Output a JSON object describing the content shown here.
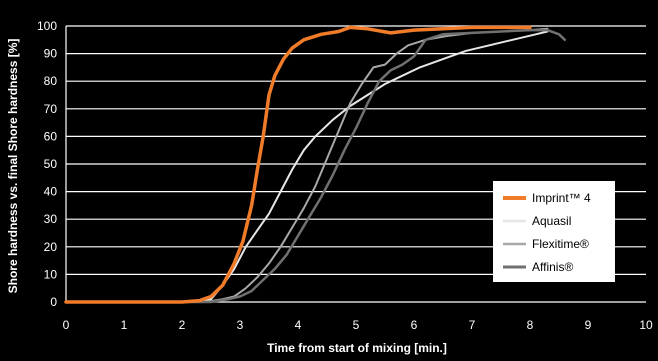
{
  "chart_data": {
    "type": "line",
    "xlabel": "Time from start of mixing [min.]",
    "ylabel": "Shore hardness vs. final Shore hardness [%]",
    "xlim": [
      0,
      10
    ],
    "ylim": [
      0,
      100
    ],
    "xticks": [
      "0",
      "1",
      "2",
      "3",
      "4",
      "5",
      "6",
      "7",
      "8",
      "9",
      "10"
    ],
    "yticks": [
      "0",
      "10",
      "20",
      "30",
      "40",
      "50",
      "60",
      "70",
      "80",
      "90",
      "100"
    ],
    "grid": "horizontal",
    "legend_position": "bottom-right",
    "series": [
      {
        "name": "Imprint™ 4",
        "color": "#f07c2a",
        "width": 3.5,
        "points": [
          [
            0,
            0
          ],
          [
            2.0,
            0
          ],
          [
            2.3,
            0.5
          ],
          [
            2.5,
            2
          ],
          [
            2.7,
            6
          ],
          [
            2.9,
            14
          ],
          [
            3.05,
            22
          ],
          [
            3.2,
            35
          ],
          [
            3.3,
            48
          ],
          [
            3.4,
            60
          ],
          [
            3.5,
            75
          ],
          [
            3.6,
            82
          ],
          [
            3.75,
            88
          ],
          [
            3.9,
            92
          ],
          [
            4.1,
            95
          ],
          [
            4.4,
            97
          ],
          [
            4.7,
            98
          ],
          [
            4.9,
            99.5
          ],
          [
            5.2,
            99
          ],
          [
            5.6,
            97.5
          ],
          [
            6.0,
            98.5
          ],
          [
            6.5,
            99
          ],
          [
            7.0,
            99.5
          ],
          [
            7.5,
            99.5
          ],
          [
            8.0,
            99.5
          ]
        ]
      },
      {
        "name": "Aquasil",
        "color": "#e6e6e6",
        "width": 2,
        "points": [
          [
            0,
            0
          ],
          [
            2.3,
            0
          ],
          [
            2.5,
            1
          ],
          [
            2.7,
            6
          ],
          [
            2.9,
            12
          ],
          [
            3.1,
            20
          ],
          [
            3.3,
            26
          ],
          [
            3.5,
            32
          ],
          [
            3.7,
            40
          ],
          [
            3.9,
            48
          ],
          [
            4.1,
            55
          ],
          [
            4.3,
            60
          ],
          [
            4.6,
            66
          ],
          [
            4.9,
            71
          ],
          [
            5.2,
            75
          ],
          [
            5.5,
            79
          ],
          [
            5.8,
            82
          ],
          [
            6.1,
            85
          ],
          [
            6.5,
            88
          ],
          [
            6.9,
            91
          ],
          [
            7.3,
            93
          ],
          [
            7.7,
            95
          ],
          [
            8.1,
            97
          ],
          [
            8.3,
            98
          ]
        ]
      },
      {
        "name": "Flexitime®",
        "color": "#a8a8a8",
        "width": 2,
        "points": [
          [
            0,
            0
          ],
          [
            2.4,
            0
          ],
          [
            2.7,
            1
          ],
          [
            2.9,
            2
          ],
          [
            3.1,
            5
          ],
          [
            3.3,
            9
          ],
          [
            3.5,
            14
          ],
          [
            3.7,
            20
          ],
          [
            3.9,
            27
          ],
          [
            4.1,
            34
          ],
          [
            4.3,
            42
          ],
          [
            4.5,
            52
          ],
          [
            4.7,
            62
          ],
          [
            4.9,
            72
          ],
          [
            5.1,
            79
          ],
          [
            5.3,
            85
          ],
          [
            5.5,
            86
          ],
          [
            5.7,
            90
          ],
          [
            5.9,
            93
          ],
          [
            6.2,
            95
          ],
          [
            6.6,
            96.5
          ],
          [
            7.0,
            97.5
          ],
          [
            7.5,
            98
          ],
          [
            8.0,
            98.5
          ],
          [
            8.3,
            99
          ]
        ]
      },
      {
        "name": "Affinis®",
        "color": "#707070",
        "width": 2.5,
        "points": [
          [
            0,
            0
          ],
          [
            2.5,
            0
          ],
          [
            2.8,
            1
          ],
          [
            3.0,
            2
          ],
          [
            3.2,
            4
          ],
          [
            3.4,
            8
          ],
          [
            3.6,
            12
          ],
          [
            3.8,
            17
          ],
          [
            4.0,
            24
          ],
          [
            4.2,
            31
          ],
          [
            4.4,
            38
          ],
          [
            4.6,
            46
          ],
          [
            4.8,
            55
          ],
          [
            5.0,
            63
          ],
          [
            5.2,
            72
          ],
          [
            5.4,
            80
          ],
          [
            5.6,
            84
          ],
          [
            5.8,
            86
          ],
          [
            6.0,
            89
          ],
          [
            6.2,
            95
          ],
          [
            6.5,
            97
          ],
          [
            7.0,
            97.5
          ],
          [
            7.5,
            98
          ],
          [
            8.0,
            98.5
          ],
          [
            8.3,
            98.5
          ],
          [
            8.5,
            97
          ],
          [
            8.6,
            95
          ]
        ]
      }
    ]
  }
}
